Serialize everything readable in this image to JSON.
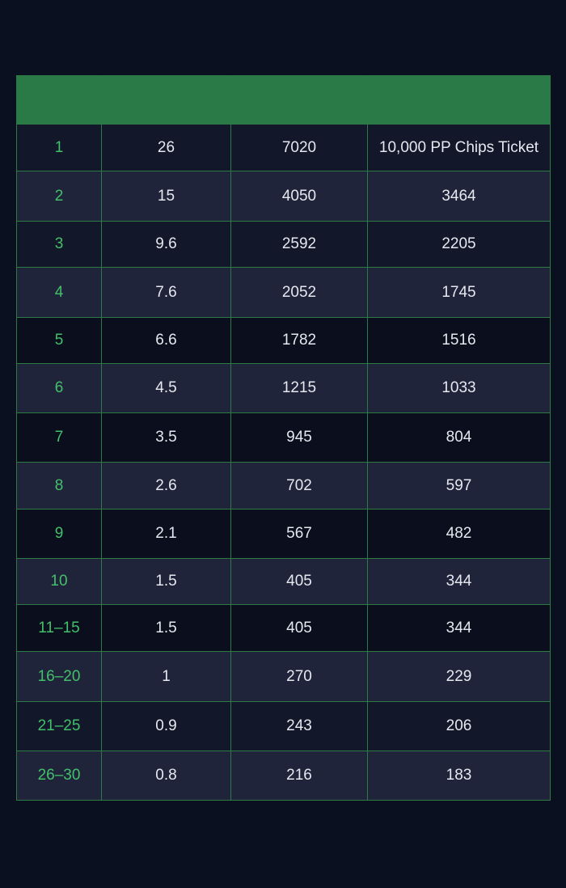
{
  "table": {
    "headers": [
      "",
      "",
      "",
      ""
    ],
    "rows": [
      {
        "rank": "1",
        "pct": "26",
        "amount": "7020",
        "prize": "10,000 PP Chips Ticket"
      },
      {
        "rank": "2",
        "pct": "15",
        "amount": "4050",
        "prize": "3464"
      },
      {
        "rank": "3",
        "pct": "9.6",
        "amount": "2592",
        "prize": "2205"
      },
      {
        "rank": "4",
        "pct": "7.6",
        "amount": "2052",
        "prize": "1745"
      },
      {
        "rank": "5",
        "pct": "6.6",
        "amount": "1782",
        "prize": "1516"
      },
      {
        "rank": "6",
        "pct": "4.5",
        "amount": "1215",
        "prize": "1033"
      },
      {
        "rank": "7",
        "pct": "3.5",
        "amount": "945",
        "prize": "804"
      },
      {
        "rank": "8",
        "pct": "2.6",
        "amount": "702",
        "prize": "597"
      },
      {
        "rank": "9",
        "pct": "2.1",
        "amount": "567",
        "prize": "482"
      },
      {
        "rank": "10",
        "pct": "1.5",
        "amount": "405",
        "prize": "344"
      },
      {
        "rank": "11–15",
        "pct": "1.5",
        "amount": "405",
        "prize": "344"
      },
      {
        "rank": "16–20",
        "pct": "1",
        "amount": "270",
        "prize": "229"
      },
      {
        "rank": "21–25",
        "pct": "0.9",
        "amount": "243",
        "prize": "206"
      },
      {
        "rank": "26–30",
        "pct": "0.8",
        "amount": "216",
        "prize": "183"
      }
    ]
  },
  "colors": {
    "header_bg": "#2a7a48",
    "border": "#2d7a44",
    "rank_text": "#43c06a",
    "value_text": "#e6e8ef",
    "page_bg": "#0b1020"
  }
}
